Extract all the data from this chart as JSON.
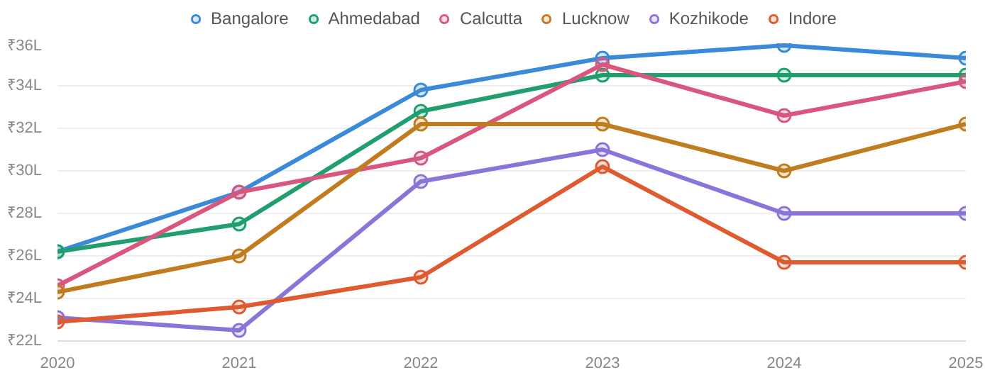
{
  "chart_data": {
    "type": "line",
    "x": [
      2020,
      2021,
      2022,
      2023,
      2024,
      2025
    ],
    "series": [
      {
        "name": "Bangalore",
        "color": "#3b8ad9",
        "values": [
          26.2,
          29.0,
          33.8,
          35.3,
          35.9,
          35.3
        ]
      },
      {
        "name": "Ahmedabad",
        "color": "#1f9e6e",
        "values": [
          26.2,
          27.5,
          32.8,
          34.5,
          34.5,
          34.5
        ]
      },
      {
        "name": "Calcutta",
        "color": "#d9577f",
        "values": [
          24.6,
          29.0,
          30.6,
          35.0,
          32.6,
          34.2
        ]
      },
      {
        "name": "Lucknow",
        "color": "#c07c1e",
        "values": [
          24.3,
          26.0,
          32.2,
          32.2,
          30.0,
          32.2
        ]
      },
      {
        "name": "Kozhikode",
        "color": "#8a74d9",
        "values": [
          23.1,
          22.5,
          29.5,
          31.0,
          28.0,
          28.0
        ]
      },
      {
        "name": "Indore",
        "color": "#df5a2f",
        "values": [
          22.9,
          23.6,
          25.0,
          30.2,
          25.7,
          25.7
        ]
      }
    ],
    "xlim": [
      2020,
      2025
    ],
    "xticks": [
      2020,
      2021,
      2022,
      2023,
      2024,
      2025
    ],
    "ylim": [
      22,
      36
    ],
    "yticks": [
      {
        "value": 22,
        "label": "₹22L"
      },
      {
        "value": 24,
        "label": "₹24L"
      },
      {
        "value": 26,
        "label": "₹26L"
      },
      {
        "value": 28,
        "label": "₹28L"
      },
      {
        "value": 30,
        "label": "₹30L"
      },
      {
        "value": 32,
        "label": "₹32L"
      },
      {
        "value": 34,
        "label": "₹34L"
      },
      {
        "value": 36,
        "label": "₹36L"
      }
    ],
    "grid": "y",
    "legend": "top",
    "marker": "circle",
    "line_style": "solid"
  }
}
